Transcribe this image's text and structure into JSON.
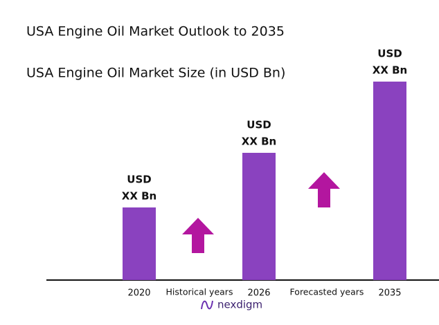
{
  "chart_data": {
    "type": "bar",
    "title": "USA Engine Oil Market Outlook to 2035",
    "subtitle": "USA Engine Oil Market Size (in USD Bn)",
    "categories": [
      "2020",
      "2026",
      "2035"
    ],
    "values": [
      105,
      184,
      287
    ],
    "bar_labels": [
      [
        "USD",
        "XX Bn"
      ],
      [
        "USD",
        "XX Bn"
      ],
      [
        "USD",
        "XX Bn"
      ]
    ],
    "period_labels": [
      "Historical years",
      "Forecasted years"
    ],
    "color": "#8a42bf",
    "arrow_color": "#b3169f",
    "ylim": [
      0,
      300
    ],
    "brand": "nexdigm"
  }
}
